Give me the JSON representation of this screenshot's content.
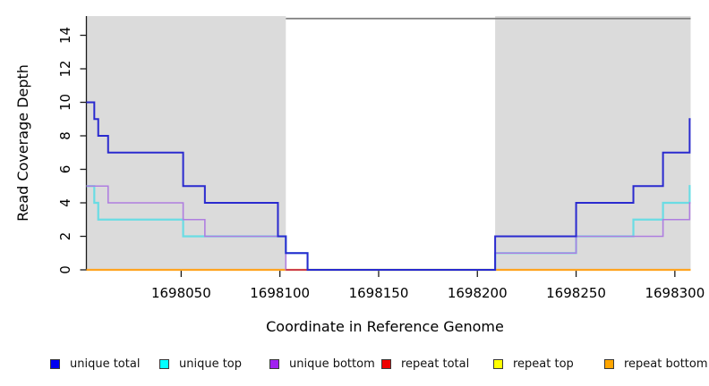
{
  "chart_data": {
    "type": "line",
    "style": "step",
    "title": "",
    "xlabel": "Coordinate in Reference Genome",
    "ylabel": "Read Coverage Depth",
    "xlim": [
      1698002,
      1698308
    ],
    "ylim": [
      0,
      15.15
    ],
    "x_ticks": [
      1698050,
      1698100,
      1698150,
      1698200,
      1698250,
      1698300
    ],
    "y_ticks": [
      0,
      2,
      4,
      6,
      8,
      10,
      12,
      14
    ],
    "grid": false,
    "legend_position": "bottom",
    "background_color": "#ffffff",
    "shaded_regions": [
      {
        "x_from": 1698002,
        "x_to": 1698103,
        "color": "#dbdbdb"
      },
      {
        "x_from": 1698209,
        "x_to": 1698308,
        "color": "#dbdbdb"
      }
    ],
    "top_boundary_line": {
      "y": 15,
      "x_from": 1698103,
      "x_to": 1698308,
      "color": "#7d7d7d"
    },
    "series": [
      {
        "name": "unique total",
        "color": "#2a2acf",
        "legend_color": "#0000f0",
        "width": 2.0,
        "z": 6,
        "steps": [
          [
            1698002,
            10
          ],
          [
            1698006,
            9
          ],
          [
            1698008,
            8
          ],
          [
            1698013,
            7
          ],
          [
            1698051,
            5
          ],
          [
            1698062,
            4
          ],
          [
            1698099,
            2
          ],
          [
            1698103,
            1
          ],
          [
            1698114,
            0
          ],
          [
            1698209,
            2
          ],
          [
            1698250,
            4
          ],
          [
            1698279,
            5
          ],
          [
            1698294,
            7
          ],
          [
            1698307.5,
            9
          ],
          [
            1698308,
            9
          ]
        ]
      },
      {
        "name": "unique top",
        "color": "#6adce4",
        "legend_color": "#00ffff",
        "width": 2.2,
        "z": 3,
        "steps": [
          [
            1698002,
            5
          ],
          [
            1698006,
            4
          ],
          [
            1698008,
            3
          ],
          [
            1698051,
            2
          ],
          [
            1698103,
            1
          ],
          [
            1698114,
            0
          ],
          [
            1698209,
            1
          ],
          [
            1698250,
            2
          ],
          [
            1698279,
            3
          ],
          [
            1698294,
            4
          ],
          [
            1698307.5,
            5
          ],
          [
            1698308,
            5
          ]
        ]
      },
      {
        "name": "unique bottom",
        "color": "#af7ee0",
        "legend_color": "#a020f0",
        "width": 1.6,
        "z": 4,
        "steps": [
          [
            1698002,
            5
          ],
          [
            1698013,
            4
          ],
          [
            1698051,
            3
          ],
          [
            1698062,
            2
          ],
          [
            1698103,
            0
          ],
          [
            1698209,
            1
          ],
          [
            1698250,
            2
          ],
          [
            1698294,
            3
          ],
          [
            1698307.5,
            4
          ],
          [
            1698308,
            4
          ]
        ]
      },
      {
        "name": "repeat total",
        "color": "#cb3344",
        "legend_color": "#ee0000",
        "width": 1.8,
        "z": 5,
        "steps": [
          [
            1698103,
            0
          ],
          [
            1698114,
            0
          ]
        ]
      },
      {
        "name": "repeat top",
        "color": "#ffff00",
        "legend_color": "#ffff00",
        "width": 1.8,
        "z": 1,
        "steps": [
          [
            1698002,
            0
          ],
          [
            1698308,
            0
          ]
        ]
      },
      {
        "name": "repeat bottom",
        "color": "#ffa420",
        "legend_color": "#ffa500",
        "width": 2.2,
        "z": 2,
        "steps": [
          [
            1698002,
            0
          ],
          [
            1698308,
            0
          ]
        ]
      }
    ]
  },
  "legend": {
    "items": [
      {
        "label": "unique total"
      },
      {
        "label": "unique top"
      },
      {
        "label": "unique bottom"
      },
      {
        "label": "repeat total"
      },
      {
        "label": "repeat top"
      },
      {
        "label": "repeat bottom"
      }
    ]
  }
}
